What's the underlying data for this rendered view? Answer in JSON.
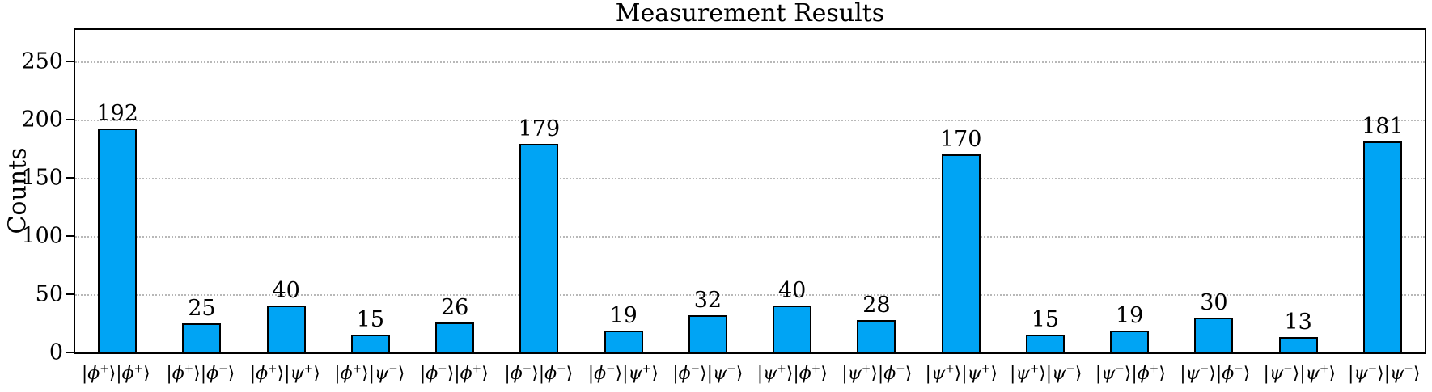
{
  "chart_data": {
    "type": "bar",
    "title": "Measurement Results",
    "xlabel": "",
    "ylabel": "Counts",
    "categories": [
      "|ϕ⁺⟩|ϕ⁺⟩",
      "|ϕ⁺⟩|ϕ⁻⟩",
      "|ϕ⁺⟩|ψ⁺⟩",
      "|ϕ⁺⟩|ψ⁻⟩",
      "|ϕ⁻⟩|ϕ⁺⟩",
      "|ϕ⁻⟩|ϕ⁻⟩",
      "|ϕ⁻⟩|ψ⁺⟩",
      "|ϕ⁻⟩|ψ⁻⟩",
      "|ψ⁺⟩|ϕ⁺⟩",
      "|ψ⁺⟩|ϕ⁻⟩",
      "|ψ⁺⟩|ψ⁺⟩",
      "|ψ⁺⟩|ψ⁻⟩",
      "|ψ⁻⟩|ϕ⁺⟩",
      "|ψ⁻⟩|ϕ⁻⟩",
      "|ψ⁻⟩|ψ⁺⟩",
      "|ψ⁻⟩|ψ⁻⟩"
    ],
    "values": [
      192,
      25,
      40,
      15,
      26,
      179,
      19,
      32,
      40,
      28,
      170,
      15,
      19,
      30,
      13,
      181
    ],
    "bar_value_labels": [
      192,
      25,
      40,
      15,
      26,
      179,
      19,
      32,
      40,
      28,
      170,
      15,
      19,
      30,
      13,
      181
    ],
    "ylim": [
      0,
      277
    ],
    "yticks": [
      0,
      50,
      100,
      150,
      200,
      250
    ],
    "grid": "horizontal-dotted",
    "legend": "none",
    "bar_color": "#00A4F4",
    "bar_edge_color": "#000000",
    "grid_color": "#b8b8b8"
  }
}
